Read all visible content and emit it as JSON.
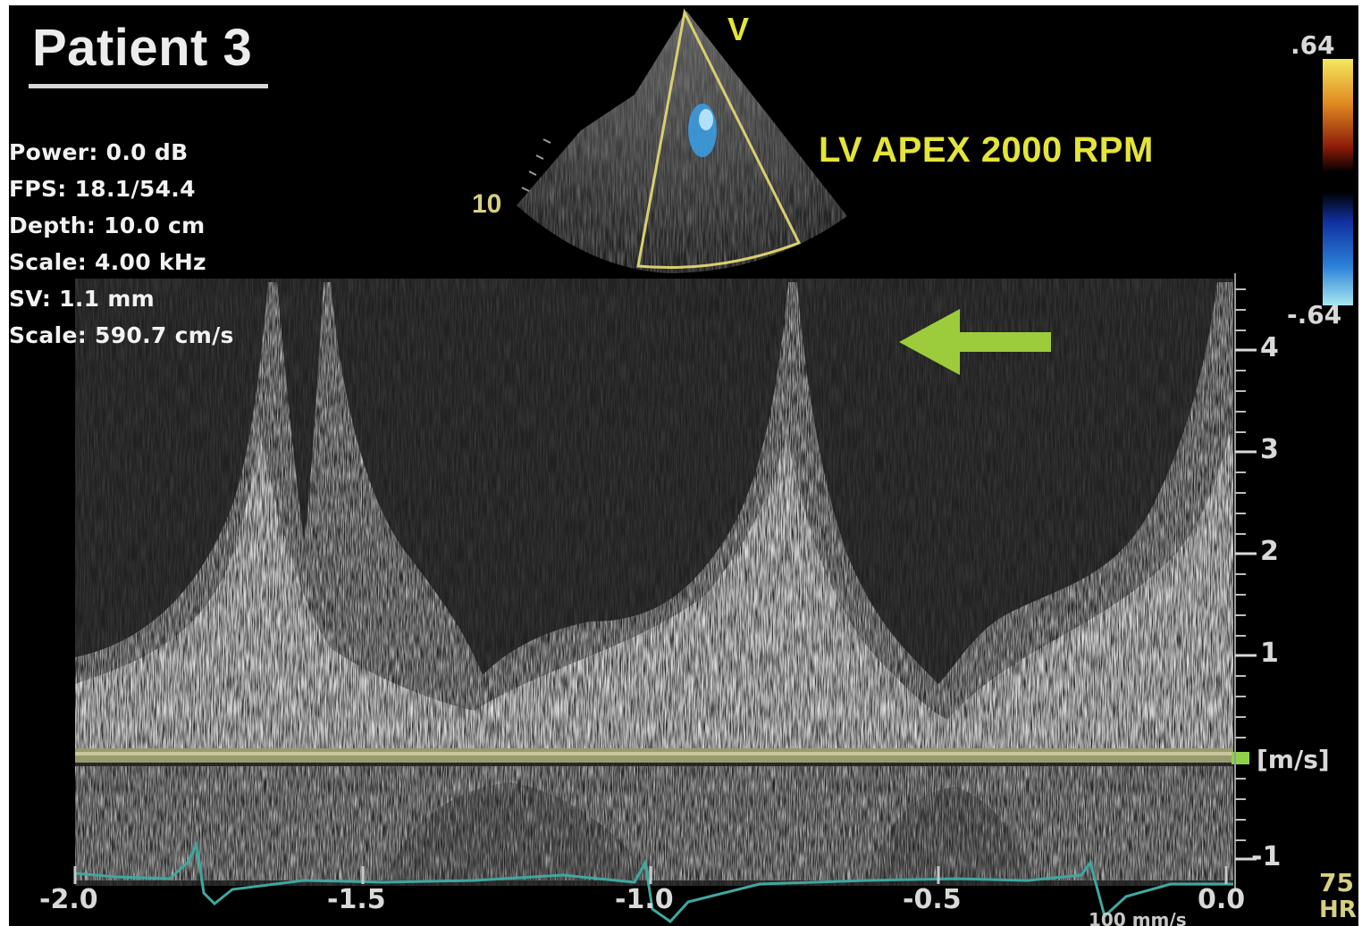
{
  "title": "Patient 3",
  "parameters": [
    {
      "text": "Power: 0.0 dB"
    },
    {
      "text": "FPS: 18.1/54.4"
    },
    {
      "text": "Depth: 10.0 cm"
    },
    {
      "text": "Scale: 4.00 kHz"
    },
    {
      "text": "SV: 1.1 mm"
    },
    {
      "text": "Scale: 590.7 cm/s"
    }
  ],
  "view_label": "LV APEX 2000 RPM",
  "probe_marker": "V",
  "depth_marker": "10",
  "color_scale": {
    "top": ".64",
    "bottom": "-.64"
  },
  "velocity_axis": {
    "ticks": [
      "4",
      "3",
      "2",
      "1",
      "-1"
    ],
    "unit": "[m/s]"
  },
  "time_axis": {
    "ticks": [
      "-2.0",
      "-1.5",
      "-1.0",
      "-0.5",
      "0.0"
    ],
    "sweep": "100 mm/s"
  },
  "heart_rate": {
    "value": "75",
    "label": "HR"
  },
  "colors": {
    "annotation_yellow": "#e4e43a",
    "arrow_green": "#9ccc3c",
    "ecg_trace": "#3fa8a0",
    "baseline": "#9a9a70"
  },
  "icons": {
    "arrow": "left-arrow-icon",
    "sector": "echo-sector-image"
  }
}
